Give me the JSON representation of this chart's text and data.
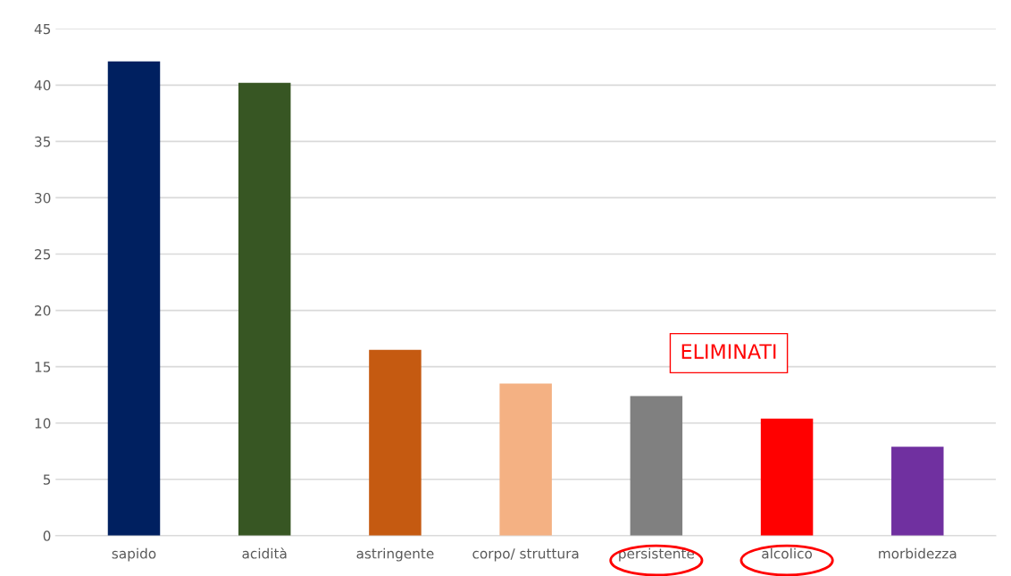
{
  "chart_data": {
    "type": "bar",
    "categories": [
      "sapido",
      "acidità",
      "astringente",
      "corpo/ struttura",
      "persistente",
      "alcolico",
      "morbidezza"
    ],
    "values": [
      42.1,
      40.2,
      16.5,
      13.5,
      12.4,
      10.4,
      7.9
    ],
    "colors": [
      "#002060",
      "#375623",
      "#c55a11",
      "#f4b183",
      "#808080",
      "#ff0000",
      "#7030a0"
    ],
    "ylim": [
      0,
      45
    ],
    "yticks": [
      0,
      5,
      10,
      15,
      20,
      25,
      30,
      35,
      40,
      45
    ],
    "grid": "y",
    "annotations": [
      "ELIMINATI"
    ]
  }
}
